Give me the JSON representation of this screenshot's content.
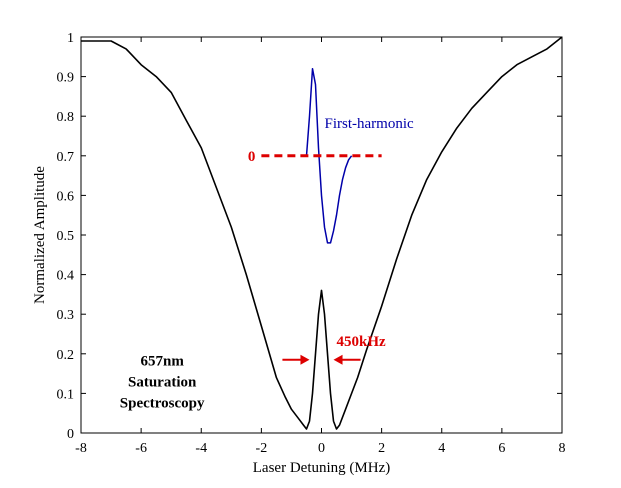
{
  "chart_data": {
    "type": "line",
    "xlabel": "Laser Detuning (MHz)",
    "ylabel": "Normalized Amplitude",
    "xlim": [
      -8,
      8
    ],
    "ylim": [
      0,
      1
    ],
    "xticks": [
      -8,
      -6,
      -4,
      -2,
      0,
      2,
      4,
      6,
      8
    ],
    "yticks": [
      0,
      0.1,
      0.2,
      0.3,
      0.4,
      0.5,
      0.6,
      0.7,
      0.8,
      0.9,
      1
    ],
    "yticklabels": [
      "0",
      "0.1",
      "0.2",
      "0.3",
      "0.4",
      "0.5",
      "0.6",
      "0.7",
      "0.8",
      "0.9",
      "1"
    ],
    "grid": false,
    "series": [
      {
        "color": "#000000",
        "x": [
          -8.0,
          -7.5,
          -7.0,
          -6.5,
          -6.0,
          -5.5,
          -5.0,
          -4.5,
          -4.0,
          -3.5,
          -3.0,
          -2.5,
          -2.0,
          -1.5,
          -1.2,
          -1.0,
          -0.8,
          -0.6,
          -0.5,
          -0.4,
          -0.3,
          -0.2,
          -0.1,
          0.0,
          0.1,
          0.2,
          0.3,
          0.4,
          0.5,
          0.6,
          0.8,
          1.0,
          1.2,
          1.5,
          2.0,
          2.5,
          3.0,
          3.5,
          4.0,
          4.5,
          5.0,
          5.5,
          6.0,
          6.5,
          7.0,
          7.5,
          8.0
        ],
        "y": [
          0.99,
          0.99,
          0.99,
          0.97,
          0.93,
          0.9,
          0.86,
          0.79,
          0.72,
          0.62,
          0.52,
          0.4,
          0.27,
          0.14,
          0.09,
          0.06,
          0.04,
          0.02,
          0.01,
          0.03,
          0.1,
          0.2,
          0.3,
          0.36,
          0.3,
          0.2,
          0.1,
          0.03,
          0.01,
          0.02,
          0.06,
          0.1,
          0.14,
          0.21,
          0.32,
          0.44,
          0.55,
          0.64,
          0.71,
          0.77,
          0.82,
          0.86,
          0.9,
          0.93,
          0.95,
          0.97,
          1.0
        ]
      },
      {
        "name": "First-harmonic",
        "color": "#0000aa",
        "x": [
          -0.5,
          -0.4,
          -0.3,
          -0.2,
          -0.1,
          0.0,
          0.1,
          0.2,
          0.3,
          0.4,
          0.5,
          0.6,
          0.7,
          0.8,
          0.9,
          1.0
        ],
        "y": [
          0.7,
          0.8,
          0.92,
          0.88,
          0.72,
          0.6,
          0.52,
          0.48,
          0.48,
          0.51,
          0.55,
          0.6,
          0.64,
          0.67,
          0.69,
          0.7
        ]
      }
    ],
    "annotations": {
      "zero_label": "0",
      "zero_line": {
        "x": [
          -2.0,
          2.0
        ],
        "y": 0.7,
        "color": "#dd0000"
      },
      "harmonic_label": "First-harmonic",
      "harmonic_label_pos": {
        "x": 0.1,
        "y": 0.77
      },
      "linewidth_label": "450kHz",
      "linewidth_label_pos": {
        "x": 0.5,
        "y": 0.22
      },
      "linewidth_arrows": {
        "left_x": -0.4,
        "right_x": 0.4,
        "y": 0.185,
        "length": 0.9,
        "color": "#dd0000"
      },
      "corner_lines": [
        "657nm",
        "Saturation",
        "Spectroscopy"
      ],
      "corner_pos": {
        "x": -5.3,
        "y": 0.17
      }
    }
  }
}
